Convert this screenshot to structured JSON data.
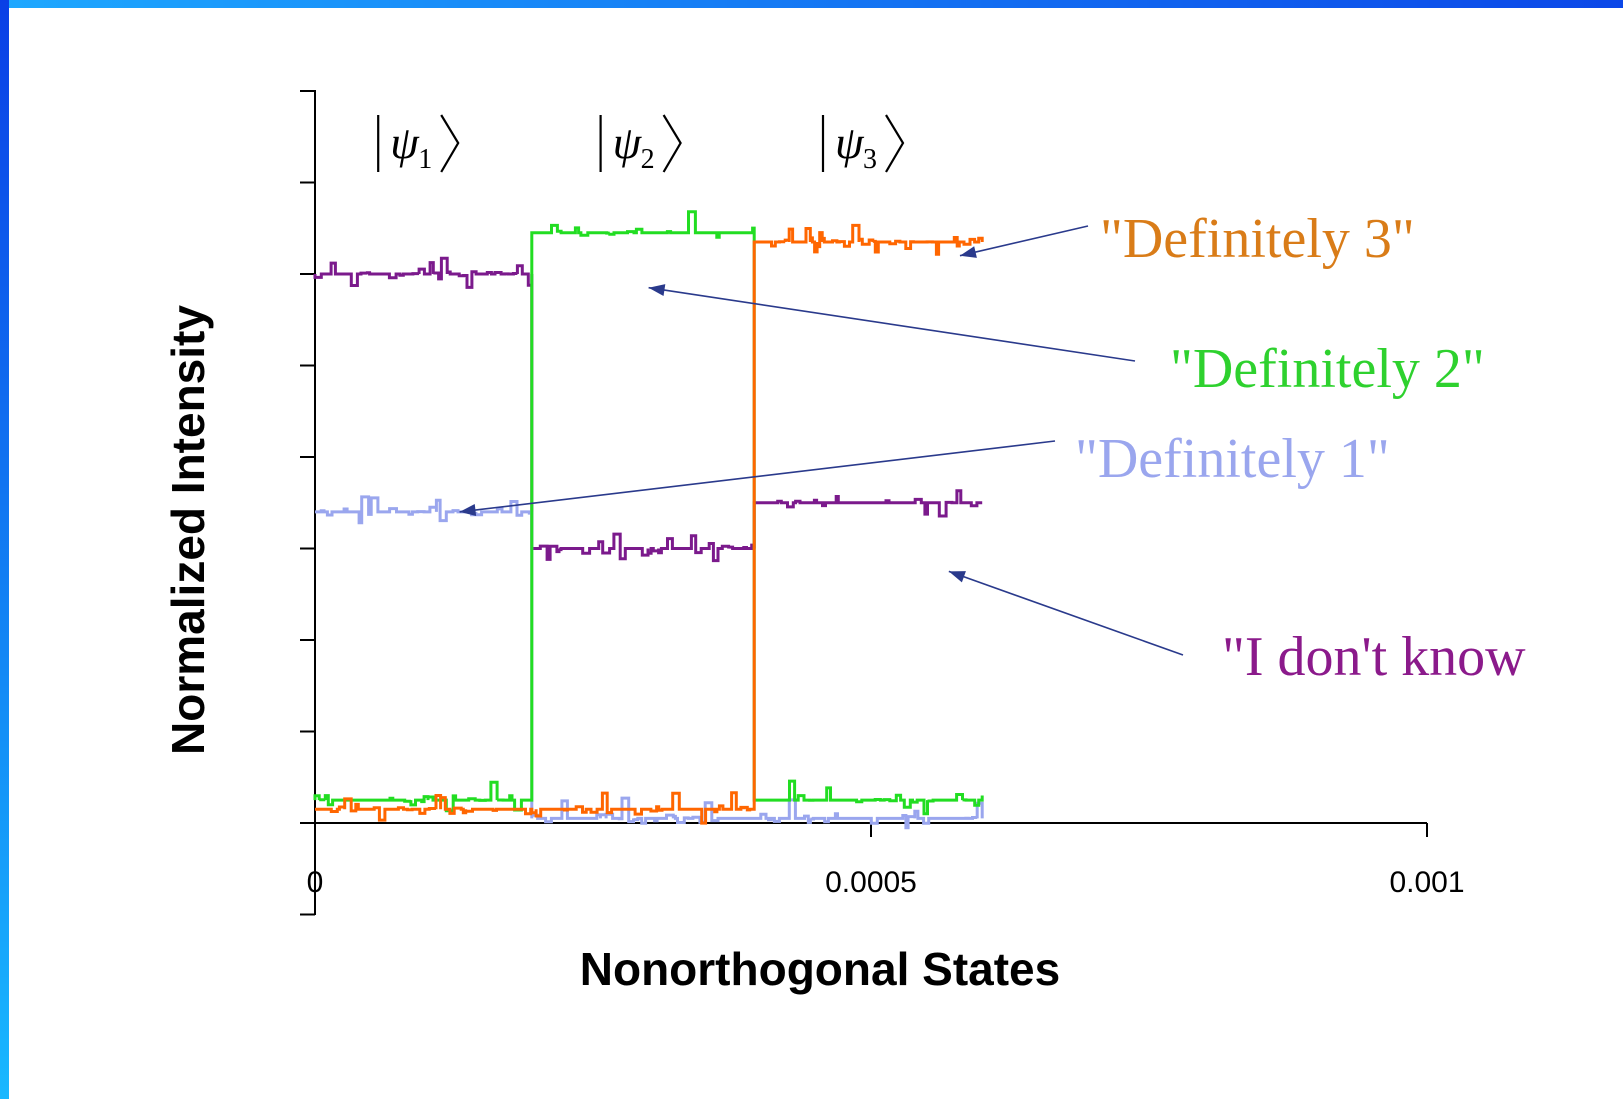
{
  "chart_data": {
    "type": "line",
    "xlabel": "Nonorthogonal States",
    "ylabel": "Normalized Intensity",
    "xlim": [
      0,
      0.001
    ],
    "ylim": [
      0,
      8
    ],
    "x_tick_labels": [
      "0",
      "0.0005",
      "0.001"
    ],
    "x_ticks": [
      0,
      0.0005,
      0.001
    ],
    "y_ticks": [
      -1,
      0,
      1,
      2,
      3,
      4,
      5,
      6,
      7,
      8
    ],
    "state_labels": [
      {
        "symbol": "ψ",
        "sub": "1",
        "x": 0.0001
      },
      {
        "symbol": "ψ",
        "sub": "2",
        "x": 0.0003
      },
      {
        "symbol": "ψ",
        "sub": "3",
        "x": 0.0005
      }
    ],
    "series": [
      {
        "color": "#7b1a8c",
        "segments": [
          {
            "x_start": 0.0,
            "x_end": 0.000195,
            "y": 6.0
          },
          {
            "x_start": 0.000195,
            "x_end": 0.000395,
            "y": 3.0
          },
          {
            "x_start": 0.000395,
            "x_end": 0.0006,
            "y": 3.5
          }
        ]
      },
      {
        "color": "#9aa6ee",
        "segments": [
          {
            "x_start": 0.0,
            "x_end": 0.000195,
            "y": 3.4
          },
          {
            "x_start": 0.000195,
            "x_end": 0.000395,
            "y": 0.05
          },
          {
            "x_start": 0.000395,
            "x_end": 0.0006,
            "y": 0.05
          }
        ]
      },
      {
        "color": "#22dd22",
        "segments": [
          {
            "x_start": 0.0,
            "x_end": 0.000195,
            "y": 0.25
          },
          {
            "x_start": 0.000195,
            "x_end": 0.000395,
            "y": 6.45
          },
          {
            "x_start": 0.000395,
            "x_end": 0.0006,
            "y": 0.25
          }
        ]
      },
      {
        "color": "#ff6600",
        "segments": [
          {
            "x_start": 0.0,
            "x_end": 0.000195,
            "y": 0.15
          },
          {
            "x_start": 0.000195,
            "x_end": 0.000395,
            "y": 0.15
          },
          {
            "x_start": 0.000395,
            "x_end": 0.0006,
            "y": 6.35
          }
        ]
      }
    ],
    "annotations": [
      {
        "text": "\"Definitely 3\"",
        "color": "#d97c18",
        "point_x": 0.00058,
        "point_y": 6.2
      },
      {
        "text": "\"Definitely 2\"",
        "color": "#2ed12e",
        "point_x": 0.0003,
        "point_y": 5.85
      },
      {
        "text": "\"Definitely 1\"",
        "color": "#9aa6ee",
        "point_x": 0.00013,
        "point_y": 3.4
      },
      {
        "text": "\"I don't know",
        "color": "#8b1a8b",
        "point_x": 0.00057,
        "point_y": 2.75
      }
    ]
  }
}
